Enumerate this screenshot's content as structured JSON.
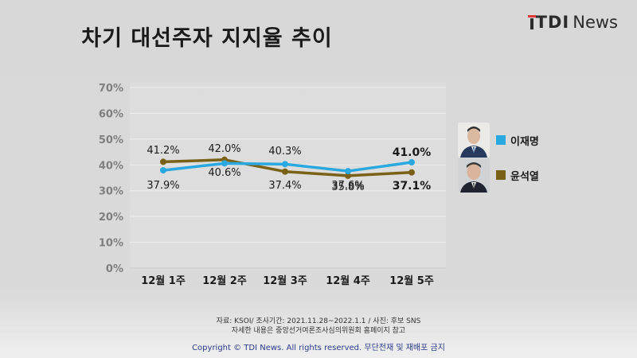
{
  "header": {
    "title": "차기 대선주자 지지율 추이",
    "logo_tdi": "TDI",
    "logo_news": "News"
  },
  "colors": {
    "lee": "#29a9e0",
    "yoon": "#7a6118",
    "grid": "#ededed",
    "tick": "#7f7f7f"
  },
  "chart_data": {
    "type": "line",
    "categories": [
      "12월 1주",
      "12월 2주",
      "12월 3주",
      "12월 4주",
      "12월 5주"
    ],
    "series": [
      {
        "name": "이재명",
        "values": [
          37.9,
          40.6,
          40.3,
          37.6,
          41.0
        ]
      },
      {
        "name": "윤석열",
        "values": [
          41.2,
          42.0,
          37.4,
          35.8,
          37.1
        ]
      }
    ],
    "data_labels": {
      "above": [
        "41.2%",
        "42.0%",
        "40.3%",
        "35.8%",
        "41.0%"
      ],
      "below": [
        "37.9%",
        "40.6%",
        "37.4%",
        "37.6%",
        "37.1%"
      ]
    },
    "y_ticks": [
      "0%",
      "10%",
      "20%",
      "30%",
      "40%",
      "50%",
      "60%",
      "70%"
    ],
    "ylim": [
      0,
      70
    ],
    "grid": true,
    "legend_position": "right",
    "title": "차기 대선주자 지지율 추이"
  },
  "legend": [
    {
      "label": "이재명",
      "photo_icon": "person-photo-icon"
    },
    {
      "label": "윤석열",
      "photo_icon": "person-photo-icon"
    }
  ],
  "footer": {
    "source_line": "자료: KSOI/ 조사기간: 2021.11.28~2022.1.1 / 사진: 후보 SNS",
    "detail_line": "자세한 내용은 중앙선거여론조사심의위원회 홈페이지 참고",
    "copyright": "Copyright © TDI News. All rights reserved. 무단전재 및 재배포 금지"
  }
}
